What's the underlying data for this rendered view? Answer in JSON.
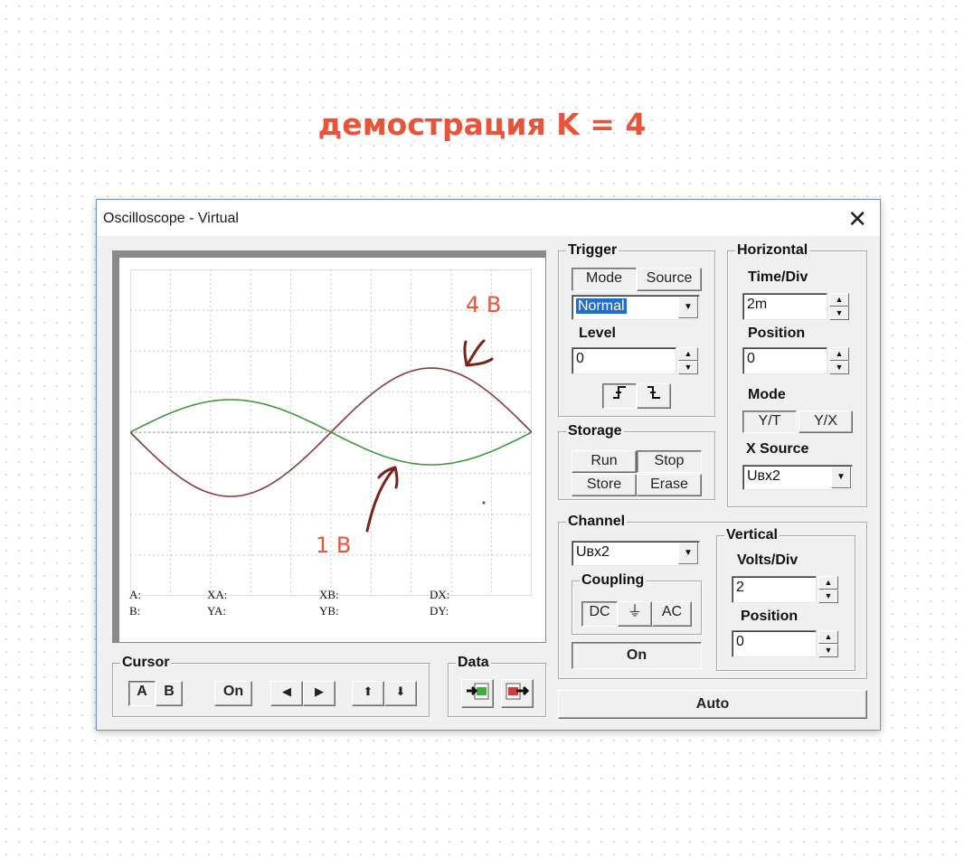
{
  "heading": "демострация K = 4",
  "window": {
    "title": "Oscilloscope - Virtual"
  },
  "cursor_readouts": [
    {
      "label": "A:"
    },
    {
      "label": "XA:"
    },
    {
      "label": "XB:"
    },
    {
      "label": "DX:"
    },
    {
      "label": "B:"
    },
    {
      "label": "YA:"
    },
    {
      "label": "YB:"
    },
    {
      "label": "DY:"
    }
  ],
  "annotations": {
    "top": "4 В",
    "bottom": "1 В"
  },
  "colors": {
    "heading": "#e8543a",
    "trace_red": "#8b3a3a",
    "trace_green": "#3c9a3c",
    "pen": "#7a2416",
    "grid": "#c8c8c8"
  },
  "trigger": {
    "label": "Trigger",
    "mode_button": "Mode",
    "source_button": "Source",
    "mode_value": "Normal",
    "level_label": "Level",
    "level_value": "0",
    "rising_edge": "⨍",
    "falling_edge": "ꝭ"
  },
  "storage": {
    "label": "Storage",
    "run": "Run",
    "stop": "Stop",
    "store": "Store",
    "erase": "Erase"
  },
  "horizontal": {
    "label": "Horizontal",
    "time_div_label": "Time/Div",
    "time_div_value": "2m",
    "position_label": "Position",
    "position_value": "0",
    "mode_label": "Mode",
    "mode_yt": "Y/T",
    "mode_yx": "Y/X",
    "x_source_label": "X Source",
    "x_source_value": "Uвх2"
  },
  "channel": {
    "label": "Channel",
    "value": "Uвх2",
    "coupling_label": "Coupling",
    "dc": "DC",
    "ground": "⏚",
    "ac": "AC",
    "on": "On"
  },
  "vertical": {
    "label": "Vertical",
    "volts_div_label": "Volts/Div",
    "volts_div_value": "2",
    "position_label": "Position",
    "position_value": "0"
  },
  "auto_button": "Auto",
  "cursor": {
    "label": "Cursor",
    "a": "A",
    "b": "B",
    "on": "On",
    "left": "◀",
    "right": "▶",
    "up": "⬆",
    "down": "⬇"
  },
  "data_group": {
    "label": "Data"
  }
}
